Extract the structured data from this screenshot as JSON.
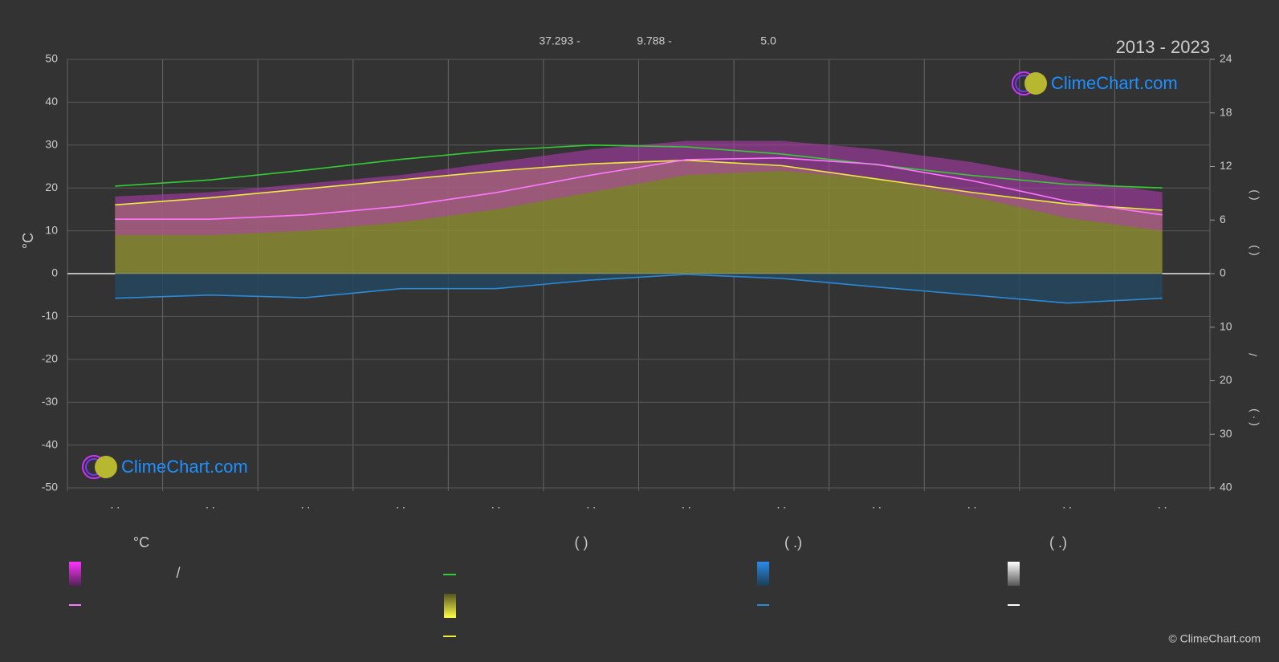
{
  "chart_data": {
    "type": "line",
    "title": "2013 - 2023",
    "coordinates": [
      "37.293 -",
      "9.788 -",
      "5.0"
    ],
    "watermark": "ClimeChart.com",
    "copyright": "© ClimeChart.com",
    "ylabel": "°C",
    "y2label_parts": [
      "(   )",
      "(   )",
      "/",
      "( · )"
    ],
    "legend_texts": [
      "°C",
      "(          )",
      "(   .)",
      "(   .)",
      "/"
    ],
    "categories": [
      ". .",
      ". .",
      ". .",
      ". .",
      ". .",
      ". .",
      ". .",
      ". .",
      ". .",
      ". .",
      ". .",
      ". ."
    ],
    "ylim": [
      -50,
      50
    ],
    "yticks": [
      50,
      40,
      30,
      20,
      10,
      0,
      -10,
      -20,
      -30,
      -40,
      -50
    ],
    "y2lim": [
      -24,
      24
    ],
    "y2ticks": [
      24,
      18,
      12,
      6,
      0
    ],
    "y3lim": [
      40,
      -40
    ],
    "y3ticks": [
      10,
      20,
      30,
      40
    ],
    "grid": true,
    "temperature_range": {
      "color": "#b43cb4",
      "high": [
        18,
        19,
        21,
        23,
        26,
        29,
        31,
        31,
        29,
        26,
        22,
        19
      ],
      "low": [
        9,
        9,
        10,
        12,
        15,
        19,
        23,
        24,
        22,
        18,
        13,
        10
      ]
    },
    "series": [
      {
        "color": "#8a8a33",
        "fill": "#8a8a33",
        "axis": "y2",
        "values": [
          7.7,
          8.5,
          9.5,
          10.5,
          11.5,
          12.3,
          12.7,
          12.1,
          10.6,
          9.1,
          7.8,
          7.1
        ]
      },
      {
        "color": "#2a6f9e",
        "fill": "#24475f",
        "axis": "y3",
        "values": [
          4.6,
          4.0,
          4.5,
          2.8,
          2.8,
          1.2,
          0.15,
          0.9,
          2.5,
          4.0,
          5.5,
          4.6
        ]
      },
      {
        "color": "#33cc33",
        "axis": "y2",
        "values": [
          9.8,
          10.5,
          11.6,
          12.8,
          13.8,
          14.4,
          14.2,
          13.4,
          12.2,
          11.0,
          10.0,
          9.6
        ]
      },
      {
        "color": "#ecec3c",
        "axis": "y2",
        "values": [
          7.7,
          8.5,
          9.5,
          10.5,
          11.5,
          12.3,
          12.7,
          12.1,
          10.6,
          9.1,
          7.8,
          7.1
        ]
      },
      {
        "color": "#ff77ff",
        "axis": "y",
        "values": [
          12.7,
          12.7,
          13.7,
          15.7,
          18.9,
          23.0,
          26.6,
          27.0,
          25.5,
          21.7,
          16.9,
          13.7
        ]
      },
      {
        "color": "#2a8ad8",
        "axis": "y3",
        "values": [
          4.6,
          4.0,
          4.5,
          2.8,
          2.8,
          1.2,
          0.15,
          0.9,
          2.5,
          4.0,
          5.5,
          4.6
        ]
      }
    ]
  }
}
